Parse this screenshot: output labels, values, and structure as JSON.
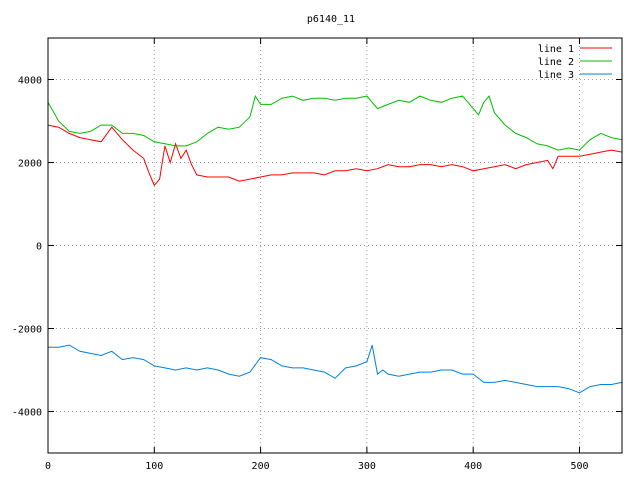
{
  "chart_data": {
    "type": "line",
    "title": "p6140_11",
    "xlabel": "",
    "ylabel": "",
    "xlim": [
      0,
      540
    ],
    "ylim": [
      -5000,
      5000
    ],
    "xticks": [
      0,
      100,
      200,
      300,
      400,
      500
    ],
    "yticks": [
      -4000,
      -2000,
      0,
      2000,
      4000
    ],
    "grid": true,
    "legend_position": "top-right",
    "series": [
      {
        "name": "line 1",
        "color": "#ff0000",
        "x": [
          0,
          10,
          20,
          30,
          40,
          50,
          60,
          70,
          80,
          90,
          95,
          100,
          105,
          110,
          115,
          120,
          125,
          130,
          135,
          140,
          150,
          160,
          170,
          180,
          190,
          200,
          210,
          220,
          230,
          240,
          250,
          260,
          270,
          280,
          290,
          300,
          310,
          320,
          330,
          340,
          350,
          360,
          370,
          380,
          390,
          400,
          410,
          420,
          430,
          440,
          450,
          460,
          470,
          475,
          480,
          490,
          500,
          510,
          520,
          530,
          540
        ],
        "values": [
          2900,
          2850,
          2700,
          2600,
          2550,
          2500,
          2850,
          2550,
          2300,
          2100,
          1750,
          1450,
          1600,
          2400,
          2000,
          2450,
          2100,
          2300,
          1950,
          1700,
          1650,
          1650,
          1650,
          1550,
          1600,
          1650,
          1700,
          1700,
          1750,
          1750,
          1750,
          1700,
          1800,
          1800,
          1850,
          1800,
          1850,
          1950,
          1900,
          1900,
          1950,
          1950,
          1900,
          1950,
          1900,
          1800,
          1850,
          1900,
          1950,
          1850,
          1950,
          2000,
          2050,
          1850,
          2150,
          2150,
          2150,
          2200,
          2250,
          2300,
          2250
        ]
      },
      {
        "name": "line 2",
        "color": "#00c000",
        "x": [
          0,
          10,
          20,
          30,
          40,
          50,
          60,
          70,
          80,
          90,
          100,
          110,
          120,
          130,
          140,
          150,
          160,
          170,
          180,
          190,
          195,
          200,
          210,
          220,
          230,
          240,
          250,
          260,
          270,
          280,
          290,
          300,
          310,
          320,
          330,
          340,
          350,
          360,
          370,
          380,
          390,
          400,
          405,
          410,
          415,
          420,
          430,
          440,
          450,
          460,
          470,
          480,
          490,
          500,
          510,
          520,
          530,
          540
        ],
        "values": [
          3450,
          3000,
          2750,
          2700,
          2750,
          2900,
          2900,
          2700,
          2700,
          2650,
          2500,
          2450,
          2400,
          2400,
          2500,
          2700,
          2850,
          2800,
          2850,
          3100,
          3600,
          3400,
          3400,
          3550,
          3600,
          3500,
          3550,
          3550,
          3500,
          3550,
          3550,
          3600,
          3300,
          3400,
          3500,
          3450,
          3600,
          3500,
          3450,
          3550,
          3600,
          3300,
          3150,
          3450,
          3600,
          3200,
          2900,
          2700,
          2600,
          2450,
          2400,
          2300,
          2350,
          2300,
          2550,
          2700,
          2600,
          2550
        ]
      },
      {
        "name": "line 3",
        "color": "#0080e0",
        "x": [
          0,
          10,
          20,
          30,
          40,
          50,
          60,
          70,
          80,
          90,
          100,
          110,
          120,
          130,
          140,
          150,
          160,
          170,
          180,
          190,
          200,
          210,
          220,
          230,
          240,
          250,
          260,
          270,
          280,
          290,
          300,
          305,
          310,
          315,
          320,
          330,
          340,
          350,
          360,
          370,
          380,
          390,
          400,
          410,
          420,
          430,
          440,
          450,
          460,
          470,
          480,
          490,
          500,
          510,
          520,
          530,
          540
        ],
        "values": [
          -2450,
          -2450,
          -2400,
          -2550,
          -2600,
          -2650,
          -2550,
          -2750,
          -2700,
          -2750,
          -2900,
          -2950,
          -3000,
          -2950,
          -3000,
          -2950,
          -3000,
          -3100,
          -3150,
          -3050,
          -2700,
          -2750,
          -2900,
          -2950,
          -2950,
          -3000,
          -3050,
          -3200,
          -2950,
          -2900,
          -2800,
          -2400,
          -3100,
          -3000,
          -3100,
          -3150,
          -3100,
          -3050,
          -3050,
          -3000,
          -3000,
          -3100,
          -3100,
          -3300,
          -3300,
          -3250,
          -3300,
          -3350,
          -3400,
          -3400,
          -3400,
          -3450,
          -3550,
          -3400,
          -3350,
          -3350,
          -3300
        ]
      }
    ]
  }
}
